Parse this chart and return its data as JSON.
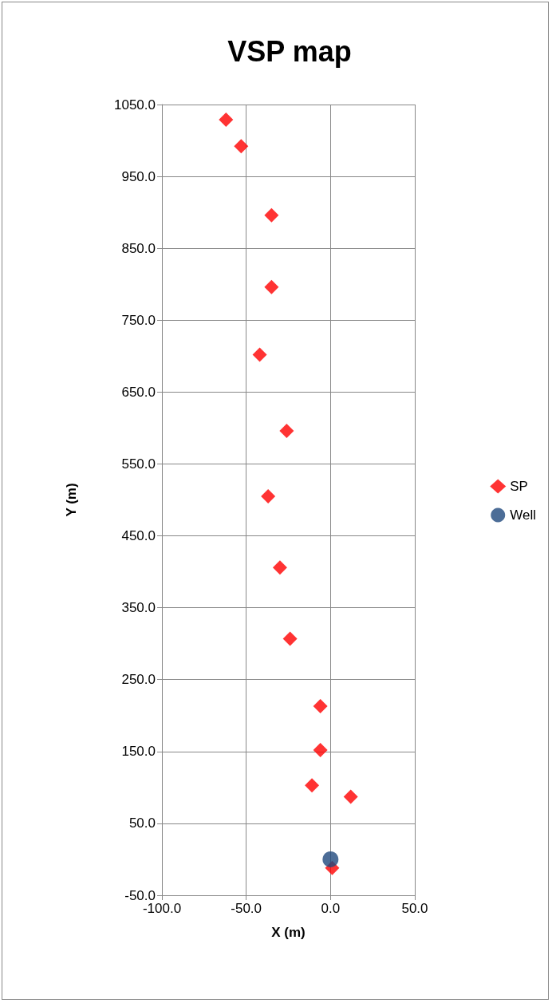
{
  "chart_data": {
    "type": "scatter",
    "title": "VSP map",
    "xlabel": "X (m)",
    "ylabel": "Y (m)",
    "xlim": [
      -100,
      50
    ],
    "xticks": [
      {
        "value": -100,
        "label": "-100.0"
      },
      {
        "value": -50,
        "label": "-50.0"
      },
      {
        "value": 0,
        "label": "0.0"
      },
      {
        "value": 50,
        "label": "50.0"
      }
    ],
    "ylim": [
      -50,
      1050
    ],
    "yticks": [
      {
        "value": -50,
        "label": "-50.0"
      },
      {
        "value": 50,
        "label": "50.0"
      },
      {
        "value": 150,
        "label": "150.0"
      },
      {
        "value": 250,
        "label": "250.0"
      },
      {
        "value": 350,
        "label": "350.0"
      },
      {
        "value": 450,
        "label": "450.0"
      },
      {
        "value": 550,
        "label": "550.0"
      },
      {
        "value": 650,
        "label": "650.0"
      },
      {
        "value": 750,
        "label": "750.0"
      },
      {
        "value": 850,
        "label": "850.0"
      },
      {
        "value": 950,
        "label": "950.0"
      },
      {
        "value": 1050,
        "label": "1050.0"
      }
    ],
    "grid": true,
    "legend": "right",
    "series": [
      {
        "name": "SP",
        "color": "#ff0000",
        "marker": "diamond",
        "x": [
          -62,
          -53,
          -35,
          -35,
          -42,
          -26,
          -37,
          -30,
          -24,
          -6,
          -6,
          -11,
          12,
          1
        ],
        "values": [
          1029,
          992,
          896,
          796,
          702,
          596,
          505,
          406,
          307,
          213,
          152,
          103,
          87,
          -12
        ]
      },
      {
        "name": "Well",
        "color": "#1f497d",
        "marker": "circle",
        "x": [
          0
        ],
        "values": [
          0
        ]
      }
    ]
  }
}
